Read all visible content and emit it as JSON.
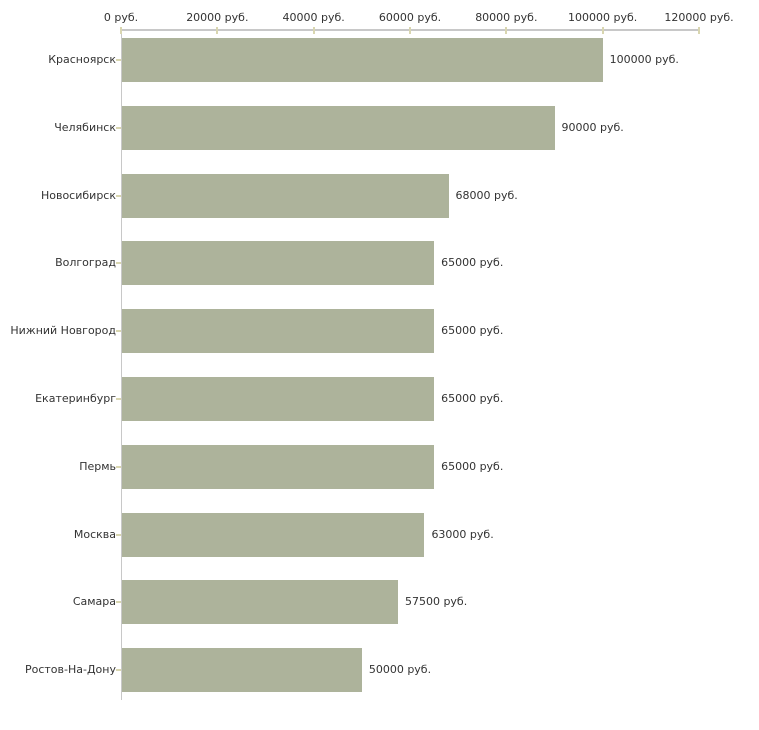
{
  "chart_data": {
    "type": "bar",
    "orientation": "horizontal",
    "title": "",
    "xlabel": "",
    "ylabel": "",
    "categories": [
      "Красноярск",
      "Челябинск",
      "Новосибирск",
      "Волгоград",
      "Нижний Новгород",
      "Екатеринбург",
      "Пермь",
      "Москва",
      "Самара",
      "Ростов-На-Дону"
    ],
    "values": [
      100000,
      90000,
      68000,
      65000,
      65000,
      65000,
      65000,
      63000,
      57500,
      50000
    ],
    "value_labels": [
      "100000 руб.",
      "90000 руб.",
      "68000 руб.",
      "65000 руб.",
      "65000 руб.",
      "65000 руб.",
      "65000 руб.",
      "63000 руб.",
      "57500 руб.",
      "50000 руб."
    ],
    "x_axis": {
      "position": "top",
      "min": 0,
      "max": 120000,
      "ticks": [
        0,
        20000,
        40000,
        60000,
        80000,
        100000,
        120000
      ],
      "tick_labels": [
        "0 руб.",
        "20000 руб.",
        "40000 руб.",
        "60000 руб.",
        "80000 руб.",
        "100000 руб.",
        "120000 руб."
      ]
    },
    "legend": "none",
    "grid": "off",
    "colors": {
      "bar": "#adb39b",
      "axis": "#c8c8c8",
      "tick": "#d9d6b0",
      "text": "#333333",
      "background": "#ffffff"
    }
  }
}
